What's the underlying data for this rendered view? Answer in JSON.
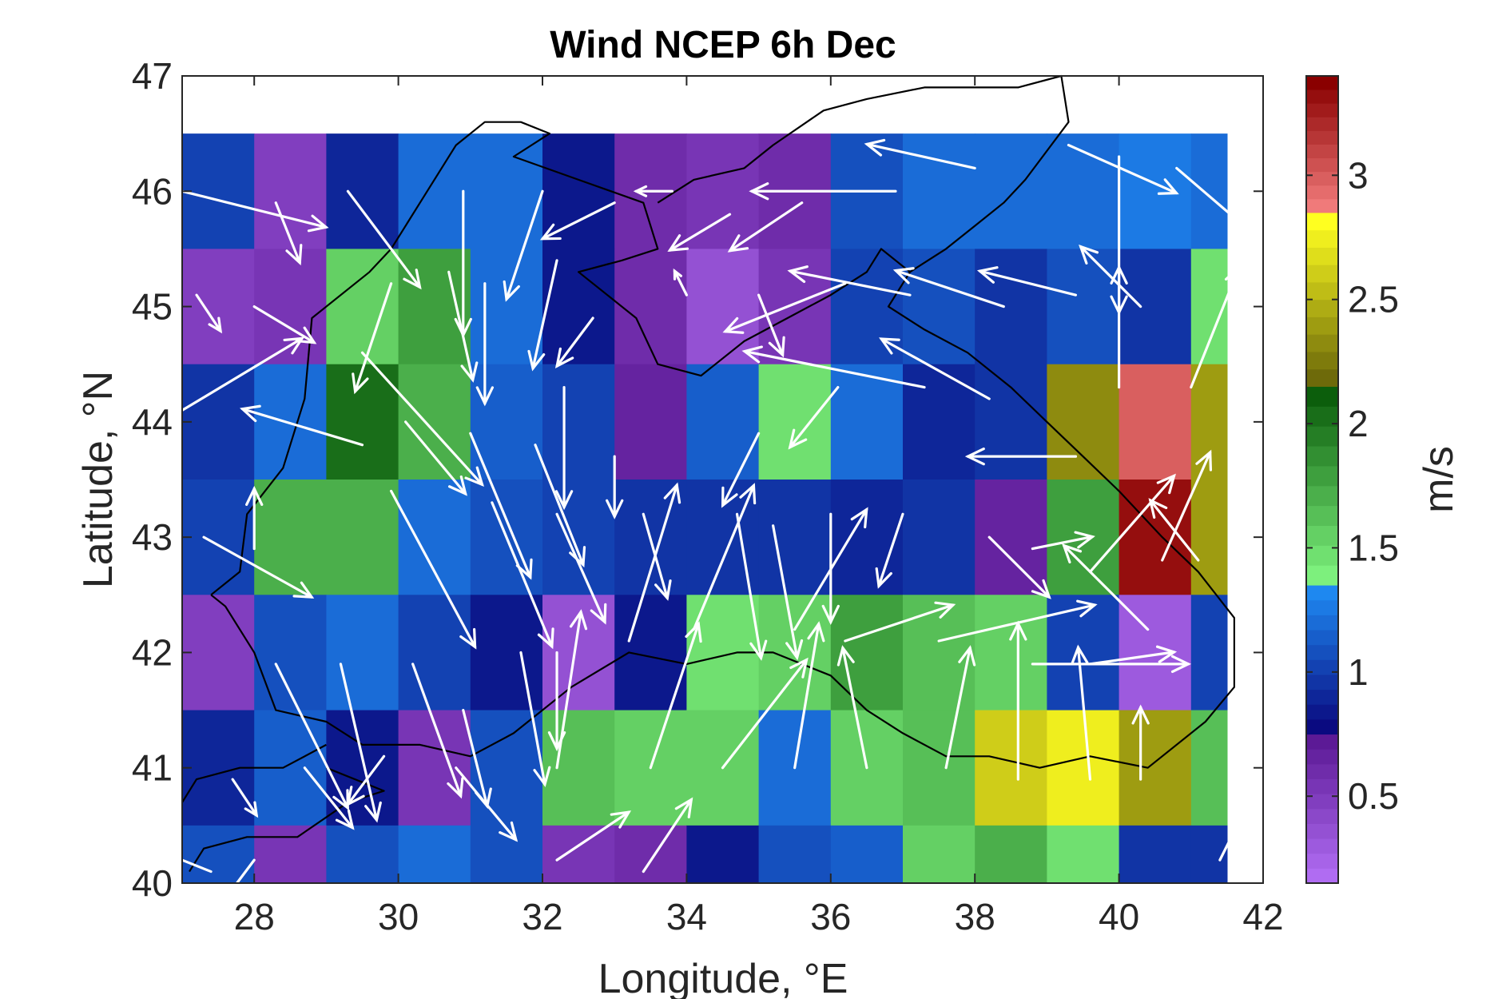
{
  "chart_data": {
    "type": "heatmap",
    "title": "Wind NCEP 6h Dec",
    "xlabel": "Longitude, °E",
    "ylabel": "Latitude, °N",
    "xlim": [
      27,
      42
    ],
    "ylim": [
      40,
      47
    ],
    "x_ticks": [
      28,
      30,
      32,
      34,
      36,
      38,
      40,
      42
    ],
    "y_ticks": [
      40,
      41,
      42,
      43,
      44,
      45,
      46,
      47
    ],
    "cell_lon_centers": [
      27.5,
      28.5,
      29.5,
      30.5,
      31.5,
      32.5,
      33.5,
      34.5,
      35.5,
      36.5,
      37.5,
      38.5,
      39.5,
      40.5,
      41.0
    ],
    "cell_lat_centers": [
      46.0,
      45.0,
      44.0,
      43.0,
      42.0,
      41.0,
      40.0
    ],
    "cell_lon_edges": [
      27,
      28,
      29,
      30,
      31,
      32,
      33,
      34,
      35,
      36,
      37,
      38,
      39,
      40,
      41,
      41.5
    ],
    "cell_lat_edges": [
      46.5,
      45.5,
      44.5,
      43.5,
      42.5,
      41.5,
      40.5,
      40.0
    ],
    "speed_ms": [
      [
        1.0,
        0.5,
        0.9,
        1.2,
        1.2,
        0.85,
        0.6,
        0.55,
        0.6,
        1.05,
        1.25,
        1.25,
        1.25,
        1.3,
        1.25
      ],
      [
        0.5,
        0.55,
        1.5,
        1.8,
        1.2,
        0.85,
        0.6,
        0.35,
        0.55,
        1.0,
        1.05,
        0.95,
        1.1,
        0.95,
        1.45
      ],
      [
        0.95,
        1.25,
        2.1,
        1.7,
        1.15,
        1.0,
        0.65,
        1.15,
        1.45,
        1.25,
        0.9,
        0.95,
        2.3,
        2.95,
        2.4
      ],
      [
        1.0,
        1.7,
        1.7,
        1.25,
        1.05,
        1.0,
        0.95,
        0.95,
        0.95,
        0.9,
        0.95,
        0.65,
        1.75,
        3.35,
        2.4
      ],
      [
        0.45,
        1.1,
        1.25,
        1.0,
        0.85,
        0.35,
        0.85,
        1.45,
        1.55,
        1.75,
        1.65,
        1.55,
        1.0,
        0.3,
        1.0
      ],
      [
        0.9,
        1.15,
        0.85,
        0.55,
        1.1,
        1.65,
        1.5,
        1.5,
        1.2,
        1.5,
        1.6,
        2.65,
        2.75,
        2.4,
        1.6
      ],
      [
        1.05,
        0.55,
        1.1,
        1.25,
        1.1,
        0.55,
        0.6,
        0.85,
        1.05,
        1.15,
        1.5,
        1.7,
        1.45,
        0.95,
        0.95
      ]
    ],
    "wind_vectors": [
      {
        "lon": 27.0,
        "lat": 46.0,
        "u": 1.2,
        "v": -0.3
      },
      {
        "lon": 28.3,
        "lat": 45.9,
        "u": 0.2,
        "v": -0.5
      },
      {
        "lon": 29.3,
        "lat": 46.0,
        "u": 0.6,
        "v": -0.8
      },
      {
        "lon": 30.9,
        "lat": 46.0,
        "u": 0.0,
        "v": -1.2
      },
      {
        "lon": 32.0,
        "lat": 46.0,
        "u": -0.3,
        "v": -0.9
      },
      {
        "lon": 33.0,
        "lat": 45.9,
        "u": -0.6,
        "v": -0.3
      },
      {
        "lon": 33.8,
        "lat": 46.0,
        "u": -0.3,
        "v": 0.0
      },
      {
        "lon": 34.6,
        "lat": 45.8,
        "u": -0.5,
        "v": -0.3
      },
      {
        "lon": 35.6,
        "lat": 45.9,
        "u": -0.6,
        "v": -0.4
      },
      {
        "lon": 36.9,
        "lat": 46.0,
        "u": -1.2,
        "v": 0.0
      },
      {
        "lon": 38.0,
        "lat": 46.2,
        "u": -0.9,
        "v": 0.2
      },
      {
        "lon": 39.3,
        "lat": 46.4,
        "u": 0.9,
        "v": -0.4
      },
      {
        "lon": 40.0,
        "lat": 46.3,
        "u": 0.0,
        "v": -1.3
      },
      {
        "lon": 40.8,
        "lat": 46.2,
        "u": 0.7,
        "v": -0.6
      },
      {
        "lon": 27.2,
        "lat": 45.1,
        "u": 0.2,
        "v": -0.3
      },
      {
        "lon": 28.0,
        "lat": 45.0,
        "u": 0.5,
        "v": -0.3
      },
      {
        "lon": 29.9,
        "lat": 45.2,
        "u": -0.3,
        "v": -0.9
      },
      {
        "lon": 30.7,
        "lat": 45.3,
        "u": 0.2,
        "v": -0.9
      },
      {
        "lon": 31.2,
        "lat": 45.2,
        "u": 0.0,
        "v": -1.0
      },
      {
        "lon": 32.2,
        "lat": 45.4,
        "u": -0.2,
        "v": -0.9
      },
      {
        "lon": 32.7,
        "lat": 44.9,
        "u": -0.3,
        "v": -0.4
      },
      {
        "lon": 34.0,
        "lat": 45.1,
        "u": -0.1,
        "v": 0.2
      },
      {
        "lon": 35.0,
        "lat": 45.1,
        "u": 0.2,
        "v": -0.5
      },
      {
        "lon": 36.2,
        "lat": 45.2,
        "u": -1.0,
        "v": -0.4
      },
      {
        "lon": 37.1,
        "lat": 45.1,
        "u": -1.0,
        "v": 0.2
      },
      {
        "lon": 38.4,
        "lat": 45.0,
        "u": -0.9,
        "v": 0.3
      },
      {
        "lon": 39.4,
        "lat": 45.1,
        "u": -0.8,
        "v": 0.2
      },
      {
        "lon": 40.3,
        "lat": 45.0,
        "u": -0.5,
        "v": 0.5
      },
      {
        "lon": 27.0,
        "lat": 44.1,
        "u": 1.0,
        "v": 0.6
      },
      {
        "lon": 29.5,
        "lat": 43.8,
        "u": -1.0,
        "v": 0.3
      },
      {
        "lon": 29.5,
        "lat": 44.6,
        "u": 1.0,
        "v": -1.1
      },
      {
        "lon": 30.1,
        "lat": 44.0,
        "u": 0.5,
        "v": -0.6
      },
      {
        "lon": 31.0,
        "lat": 43.9,
        "u": 0.5,
        "v": -1.2
      },
      {
        "lon": 31.9,
        "lat": 43.8,
        "u": 0.4,
        "v": -1.0
      },
      {
        "lon": 32.3,
        "lat": 44.3,
        "u": 0.0,
        "v": -1.0
      },
      {
        "lon": 33.0,
        "lat": 43.7,
        "u": 0.0,
        "v": -0.5
      },
      {
        "lon": 35.0,
        "lat": 43.9,
        "u": -0.3,
        "v": -0.6
      },
      {
        "lon": 36.1,
        "lat": 44.3,
        "u": -0.4,
        "v": -0.5
      },
      {
        "lon": 37.3,
        "lat": 44.3,
        "u": -1.5,
        "v": 0.3
      },
      {
        "lon": 38.2,
        "lat": 44.2,
        "u": -0.9,
        "v": 0.5
      },
      {
        "lon": 39.4,
        "lat": 43.7,
        "u": -0.9,
        "v": 0.0
      },
      {
        "lon": 40.0,
        "lat": 44.3,
        "u": 0.0,
        "v": 1.0
      },
      {
        "lon": 41.0,
        "lat": 44.3,
        "u": 0.4,
        "v": 1.0
      },
      {
        "lon": 27.3,
        "lat": 43.0,
        "u": 0.9,
        "v": -0.5
      },
      {
        "lon": 28.0,
        "lat": 42.9,
        "u": 0.0,
        "v": 0.5
      },
      {
        "lon": 29.9,
        "lat": 43.4,
        "u": 0.7,
        "v": -1.3
      },
      {
        "lon": 31.3,
        "lat": 43.3,
        "u": 0.5,
        "v": -1.2
      },
      {
        "lon": 32.2,
        "lat": 43.2,
        "u": 0.4,
        "v": -0.9
      },
      {
        "lon": 33.4,
        "lat": 43.2,
        "u": 0.2,
        "v": -0.7
      },
      {
        "lon": 34.7,
        "lat": 43.2,
        "u": 0.2,
        "v": -1.2
      },
      {
        "lon": 35.2,
        "lat": 43.1,
        "u": 0.2,
        "v": -1.1
      },
      {
        "lon": 36.0,
        "lat": 43.2,
        "u": 0.0,
        "v": -0.9
      },
      {
        "lon": 37.0,
        "lat": 43.2,
        "u": -0.2,
        "v": -0.6
      },
      {
        "lon": 38.2,
        "lat": 43.0,
        "u": 0.5,
        "v": -0.5
      },
      {
        "lon": 38.8,
        "lat": 42.9,
        "u": 0.5,
        "v": 0.1
      },
      {
        "lon": 39.6,
        "lat": 42.7,
        "u": 0.7,
        "v": 0.8
      },
      {
        "lon": 40.6,
        "lat": 42.8,
        "u": 0.4,
        "v": 0.9
      },
      {
        "lon": 41.1,
        "lat": 42.8,
        "u": -0.4,
        "v": 0.5
      },
      {
        "lon": 28.3,
        "lat": 41.9,
        "u": 0.6,
        "v": -1.2
      },
      {
        "lon": 29.2,
        "lat": 41.9,
        "u": 0.3,
        "v": -1.3
      },
      {
        "lon": 30.2,
        "lat": 41.9,
        "u": 0.4,
        "v": -1.1
      },
      {
        "lon": 30.9,
        "lat": 41.5,
        "u": 0.2,
        "v": -0.8
      },
      {
        "lon": 31.7,
        "lat": 42.0,
        "u": 0.2,
        "v": -1.1
      },
      {
        "lon": 32.2,
        "lat": 42.0,
        "u": 0.0,
        "v": -0.8
      },
      {
        "lon": 33.2,
        "lat": 42.1,
        "u": 0.4,
        "v": 1.3
      },
      {
        "lon": 34.1,
        "lat": 42.2,
        "u": 0.5,
        "v": 1.2
      },
      {
        "lon": 35.5,
        "lat": 42.2,
        "u": 0.6,
        "v": 1.0
      },
      {
        "lon": 36.2,
        "lat": 42.1,
        "u": 0.9,
        "v": 0.3
      },
      {
        "lon": 37.5,
        "lat": 42.1,
        "u": 1.3,
        "v": 0.3
      },
      {
        "lon": 38.8,
        "lat": 41.9,
        "u": 1.3,
        "v": 0.0
      },
      {
        "lon": 39.6,
        "lat": 41.9,
        "u": 0.7,
        "v": 0.1
      },
      {
        "lon": 40.4,
        "lat": 42.2,
        "u": -0.7,
        "v": 0.7
      },
      {
        "lon": 27.7,
        "lat": 40.9,
        "u": 0.2,
        "v": -0.3
      },
      {
        "lon": 28.7,
        "lat": 41.0,
        "u": 0.4,
        "v": -0.5
      },
      {
        "lon": 29.8,
        "lat": 41.1,
        "u": -0.3,
        "v": -0.4
      },
      {
        "lon": 30.8,
        "lat": 41.0,
        "u": 0.5,
        "v": -0.6
      },
      {
        "lon": 32.2,
        "lat": 41.0,
        "u": 0.2,
        "v": 1.3
      },
      {
        "lon": 33.5,
        "lat": 41.0,
        "u": 0.4,
        "v": 1.2
      },
      {
        "lon": 34.5,
        "lat": 41.0,
        "u": 0.7,
        "v": 0.9
      },
      {
        "lon": 35.5,
        "lat": 41.0,
        "u": 0.2,
        "v": 1.2
      },
      {
        "lon": 36.5,
        "lat": 41.0,
        "u": -0.2,
        "v": 1.0
      },
      {
        "lon": 37.6,
        "lat": 41.0,
        "u": 0.2,
        "v": 1.0
      },
      {
        "lon": 38.6,
        "lat": 40.9,
        "u": 0.0,
        "v": 1.3
      },
      {
        "lon": 39.6,
        "lat": 40.9,
        "u": -0.1,
        "v": 1.1
      },
      {
        "lon": 40.3,
        "lat": 40.9,
        "u": 0.0,
        "v": 0.6
      },
      {
        "lon": 27.4,
        "lat": 40.1,
        "u": -0.5,
        "v": 0.2
      },
      {
        "lon": 28.0,
        "lat": 40.2,
        "u": -0.3,
        "v": -0.4
      },
      {
        "lon": 32.2,
        "lat": 40.2,
        "u": 0.6,
        "v": 0.4
      },
      {
        "lon": 33.4,
        "lat": 40.1,
        "u": 0.4,
        "v": 0.6
      },
      {
        "lon": 41.4,
        "lat": 40.2,
        "u": 0.3,
        "v": 0.6
      }
    ],
    "colorbar": {
      "label": "m/s",
      "min": 0.15,
      "max": 3.4,
      "ticks": [
        0.5,
        1,
        1.5,
        2,
        2.5,
        3
      ],
      "tick_labels": [
        "0.5",
        "1",
        "1.5",
        "2",
        "2.5",
        "3"
      ],
      "segments": [
        {
          "from": 0.15,
          "to": 0.75,
          "start": "#b06cf2",
          "end": "#5c1a96"
        },
        {
          "from": 0.75,
          "to": 1.35,
          "start": "#0a0a80",
          "end": "#1e88f0"
        },
        {
          "from": 1.35,
          "to": 2.15,
          "start": "#7df07d",
          "end": "#0c5e0c"
        },
        {
          "from": 2.15,
          "to": 2.85,
          "start": "#6e6a0a",
          "end": "#ffff20"
        },
        {
          "from": 2.85,
          "to": 3.4,
          "start": "#f07a7a",
          "end": "#8a0000"
        }
      ]
    }
  }
}
